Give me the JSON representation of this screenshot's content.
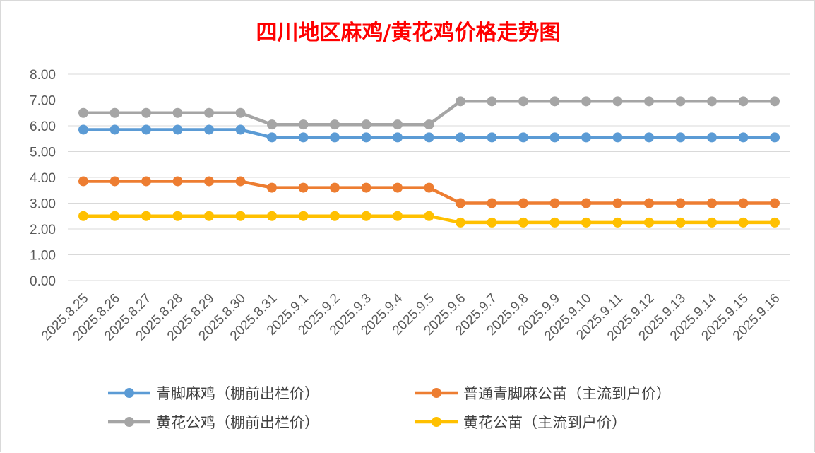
{
  "chart_data": {
    "type": "line",
    "title": "四川地区麻鸡/黄花鸡价格走势图",
    "title_color": "#ff0000",
    "xlabel": "",
    "ylabel": "",
    "ylim": [
      0,
      8
    ],
    "y_ticks": [
      "0.00",
      "1.00",
      "2.00",
      "3.00",
      "4.00",
      "5.00",
      "6.00",
      "7.00",
      "8.00"
    ],
    "grid": "horizontal",
    "legend_position": "bottom",
    "categories": [
      "2025.8.25",
      "2025.8.26",
      "2025.8.27",
      "2025.8.28",
      "2025.8.29",
      "2025.8.30",
      "2025.8.31",
      "2025.9.1",
      "2025.9.2",
      "2025.9.3",
      "2025.9.4",
      "2025.9.5",
      "2025.9.6",
      "2025.9.7",
      "2025.9.8",
      "2025.9.9",
      "2025.9.10",
      "2025.9.11",
      "2025.9.12",
      "2025.9.13",
      "2025.9.14",
      "2025.9.15",
      "2025.9.16"
    ],
    "series": [
      {
        "name": "青脚麻鸡（棚前出栏价）",
        "color": "#5b9bd5",
        "values": [
          5.85,
          5.85,
          5.85,
          5.85,
          5.85,
          5.85,
          5.55,
          5.55,
          5.55,
          5.55,
          5.55,
          5.55,
          5.55,
          5.55,
          5.55,
          5.55,
          5.55,
          5.55,
          5.55,
          5.55,
          5.55,
          5.55,
          5.55
        ]
      },
      {
        "name": "普通青脚麻公苗（主流到户价）",
        "color": "#ed7d31",
        "values": [
          3.85,
          3.85,
          3.85,
          3.85,
          3.85,
          3.85,
          3.6,
          3.6,
          3.6,
          3.6,
          3.6,
          3.6,
          3.0,
          3.0,
          3.0,
          3.0,
          3.0,
          3.0,
          3.0,
          3.0,
          3.0,
          3.0,
          3.0
        ]
      },
      {
        "name": "黄花公鸡（棚前出栏价）",
        "color": "#a5a5a5",
        "values": [
          6.5,
          6.5,
          6.5,
          6.5,
          6.5,
          6.5,
          6.05,
          6.05,
          6.05,
          6.05,
          6.05,
          6.05,
          6.95,
          6.95,
          6.95,
          6.95,
          6.95,
          6.95,
          6.95,
          6.95,
          6.95,
          6.95,
          6.95
        ]
      },
      {
        "name": "黄花公苗（主流到户价）",
        "color": "#ffc000",
        "values": [
          2.5,
          2.5,
          2.5,
          2.5,
          2.5,
          2.5,
          2.5,
          2.5,
          2.5,
          2.5,
          2.5,
          2.5,
          2.25,
          2.25,
          2.25,
          2.25,
          2.25,
          2.25,
          2.25,
          2.25,
          2.25,
          2.25,
          2.25
        ]
      }
    ]
  }
}
